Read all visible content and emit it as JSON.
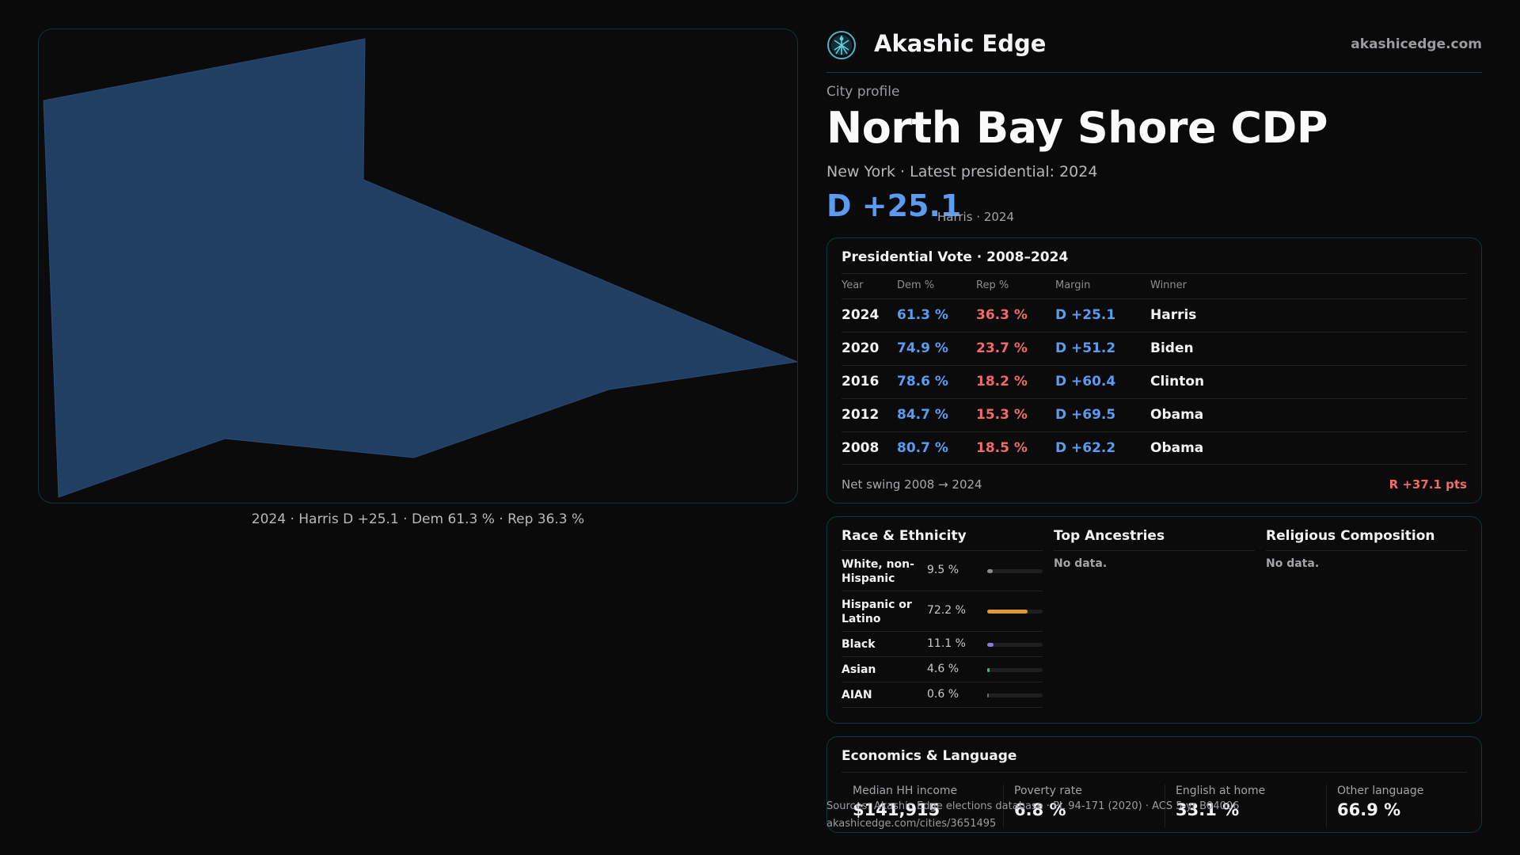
{
  "map": {
    "caption": "2024 · Harris D +25.1 · Dem 61.3 % · Rep 36.3 %",
    "fill_color": "#213e63"
  },
  "brand": {
    "name": "Akashic Edge",
    "url": "akashicedge.com",
    "icon": "globe-logo-icon"
  },
  "profile": {
    "kicker": "City profile",
    "title": "North Bay Shore CDP",
    "subtitle": "New York  · Latest presidential: 2024",
    "margin": "D +25.1",
    "margin_note": "Harris · 2024"
  },
  "vote": {
    "title": "Presidential Vote · 2008–2024",
    "headers": [
      "Year",
      "Dem %",
      "Rep %",
      "Margin",
      "Winner"
    ],
    "rows": [
      {
        "year": "2024",
        "dem": "61.3 %",
        "rep": "36.3 %",
        "margin": "D +25.1",
        "winner": "Harris"
      },
      {
        "year": "2020",
        "dem": "74.9 %",
        "rep": "23.7 %",
        "margin": "D +51.2",
        "winner": "Biden"
      },
      {
        "year": "2016",
        "dem": "78.6 %",
        "rep": "18.2 %",
        "margin": "D +60.4",
        "winner": "Clinton"
      },
      {
        "year": "2012",
        "dem": "84.7 %",
        "rep": "15.3 %",
        "margin": "D +69.5",
        "winner": "Obama"
      },
      {
        "year": "2008",
        "dem": "80.7 %",
        "rep": "18.5 %",
        "margin": "D +62.2",
        "winner": "Obama"
      }
    ],
    "swing_label": "Net swing 2008 → 2024",
    "swing_value": "R +37.1 pts"
  },
  "demographics": {
    "race_title": "Race & Ethnicity",
    "race": [
      {
        "label": "White, non-Hispanic",
        "pct": "9.5 %",
        "share": 0.095,
        "color": "#8a8a8e"
      },
      {
        "label": "Hispanic or Latino",
        "pct": "72.2 %",
        "share": 0.722,
        "color": "#e09a2b"
      },
      {
        "label": "Black",
        "pct": "11.1 %",
        "share": 0.111,
        "color": "#8b7ad9"
      },
      {
        "label": "Asian",
        "pct": "4.6 %",
        "share": 0.046,
        "color": "#3fbf7f"
      },
      {
        "label": "AIAN",
        "pct": "0.6 %",
        "share": 0.006,
        "color": "#6a6a6e"
      }
    ],
    "ancestry_title": "Top Ancestries",
    "ancestry_empty": "No data.",
    "religion_title": "Religious Composition",
    "religion_empty": "No data."
  },
  "economics": {
    "title": "Economics & Language",
    "cells": [
      {
        "label": "Median HH income",
        "value": "$141,915"
      },
      {
        "label": "Poverty rate",
        "value": "6.8 %"
      },
      {
        "label": "English at home",
        "value": "33.1 %"
      },
      {
        "label": "Other language",
        "value": "66.9 %"
      }
    ]
  },
  "source": {
    "line1": "Sources: Akashic Edge elections database · PL 94-171 (2020) · ACS 5-yr B04006",
    "line2": "akashicedge.com/cities/3651495"
  }
}
